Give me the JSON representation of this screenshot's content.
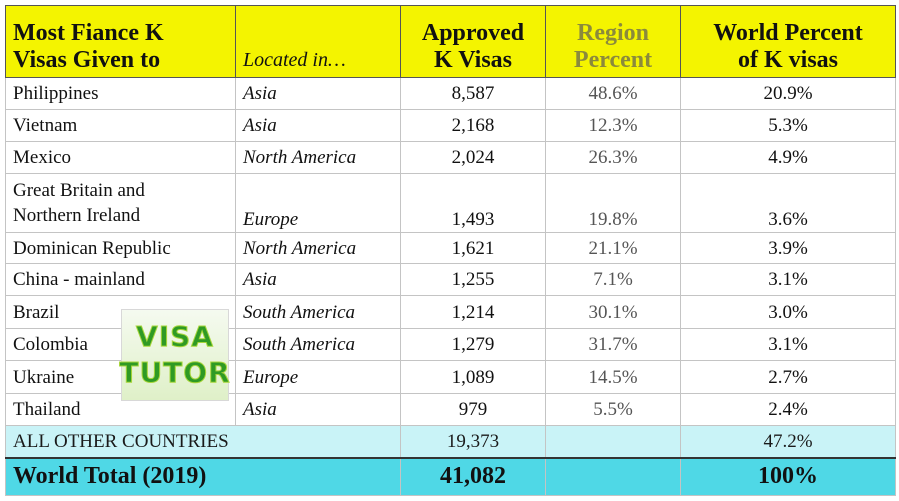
{
  "table": {
    "header": [
      "Most Fiance K\nVisas Given to",
      "Located in…",
      "Approved\nK Visas",
      "Region\nPercent",
      "World Percent\nof K visas"
    ],
    "rows": [
      [
        "Philippines",
        "Asia",
        "8,587",
        "48.6%",
        "20.9%"
      ],
      [
        "Vietnam",
        "Asia",
        "2,168",
        "12.3%",
        "5.3%"
      ],
      [
        "Mexico",
        "North America",
        "2,024",
        "26.3%",
        "4.9%"
      ],
      [
        "Great Britain and\nNorthern Ireland",
        "Europe",
        "1,493",
        "19.8%",
        "3.6%"
      ],
      [
        "Dominican Republic",
        "North America",
        "1,621",
        "21.1%",
        "3.9%"
      ],
      [
        "China - mainland",
        "Asia",
        "1,255",
        "7.1%",
        "3.1%"
      ],
      [
        "Brazil",
        "South America",
        "1,214",
        "30.1%",
        "3.0%"
      ],
      [
        "Colombia",
        "South America",
        "1,279",
        "31.7%",
        "3.1%"
      ],
      [
        "Ukraine",
        "Europe",
        "1,089",
        "14.5%",
        "2.7%"
      ],
      [
        "Thailand",
        "Asia",
        "979",
        "5.5%",
        "2.4%"
      ]
    ],
    "other": {
      "label": "ALL OTHER COUNTRIES",
      "approved": "19,373",
      "world": "47.2%"
    },
    "total": {
      "label": "World Total (2019)",
      "approved": "41,082",
      "world": "100%"
    }
  },
  "logo": [
    "VISA",
    "TUTOR"
  ]
}
